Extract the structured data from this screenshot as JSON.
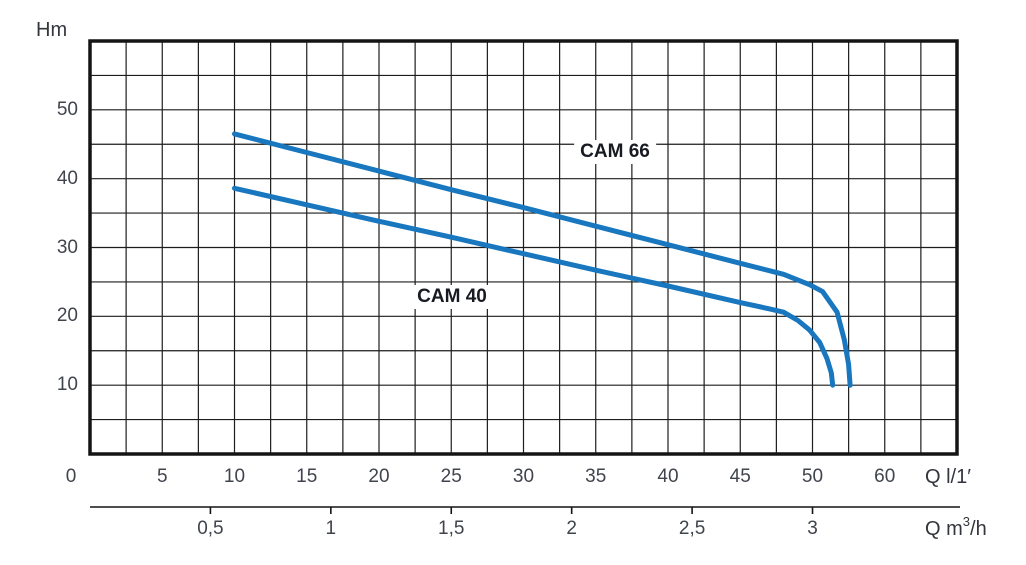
{
  "chart_data": {
    "type": "line",
    "title": "",
    "y_axis": {
      "label": "Hm",
      "tick_labels": [
        "10",
        "20",
        "30",
        "40",
        "50"
      ],
      "tick_values": [
        10,
        20,
        30,
        40,
        50
      ],
      "range": [
        0,
        60
      ],
      "grid_step": 5
    },
    "x_axis": {
      "label": "Q l/1′",
      "tick_labels": [
        "0",
        "5",
        "10",
        "15",
        "20",
        "25",
        "30",
        "35",
        "40",
        "45",
        "50",
        "60"
      ],
      "tick_slot_step": 5,
      "range": [
        0,
        60
      ],
      "grid_step": 2.5
    },
    "x_axis_secondary": {
      "label_prefix": "Q m",
      "label_sup": "3",
      "label_suffix": "/h",
      "ticks": [
        {
          "label": "0,5",
          "value": 0.5
        },
        {
          "label": "1",
          "value": 1
        },
        {
          "label": "1,5",
          "value": 1.5
        },
        {
          "label": "2",
          "value": 2
        },
        {
          "label": "2,5",
          "value": 2.5
        },
        {
          "label": "3",
          "value": 3
        }
      ],
      "lmin_per_m3h": 16.667
    },
    "series": [
      {
        "name": "CAM 66",
        "points": [
          [
            10,
            46.5
          ],
          [
            15,
            43.8
          ],
          [
            20,
            41.1
          ],
          [
            25,
            38.4
          ],
          [
            30,
            35.8
          ],
          [
            35,
            33.1
          ],
          [
            40,
            30.4
          ],
          [
            45,
            27.7
          ],
          [
            48,
            26.1
          ],
          [
            49.8,
            24.6
          ],
          [
            50.7,
            23.6
          ],
          [
            51.7,
            20.6
          ],
          [
            52.2,
            16.6
          ],
          [
            52.5,
            13.0
          ],
          [
            52.6,
            10.0
          ]
        ]
      },
      {
        "name": "CAM 40",
        "points": [
          [
            10,
            38.6
          ],
          [
            15,
            36.2
          ],
          [
            20,
            33.8
          ],
          [
            25,
            31.5
          ],
          [
            30,
            29.1
          ],
          [
            35,
            26.7
          ],
          [
            40,
            24.4
          ],
          [
            45,
            22.0
          ],
          [
            47,
            21.1
          ],
          [
            48,
            20.6
          ],
          [
            49,
            19.4
          ],
          [
            49.8,
            18.0
          ],
          [
            50.5,
            16.2
          ],
          [
            51,
            13.9
          ],
          [
            51.3,
            11.8
          ],
          [
            51.4,
            10.0
          ]
        ]
      }
    ],
    "colors": {
      "curve": "#1877be",
      "grid": "#1d1d1b",
      "border": "#141414",
      "tick_text": "#40444d",
      "unit_text": "#33363d",
      "curve_label_text": "#181a22"
    },
    "legend": "inline-annotations",
    "grid": "on"
  }
}
